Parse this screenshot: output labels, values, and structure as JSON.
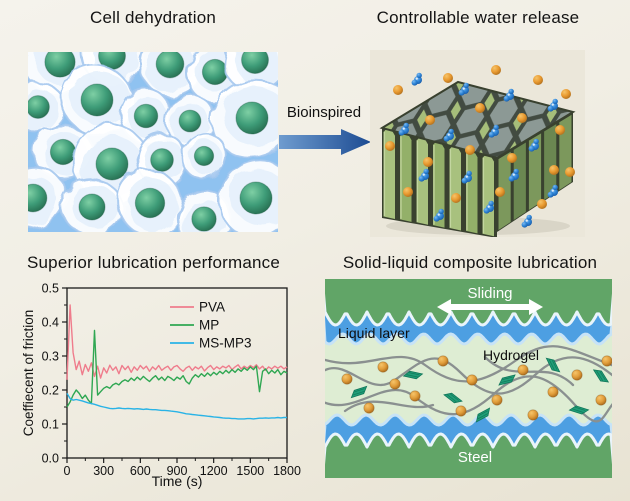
{
  "panels": {
    "cell_dehydration": {
      "title": "Cell dehydration"
    },
    "water_release": {
      "title": "Controllable water release"
    },
    "lubrication_performance": {
      "title": "Superior lubrication performance"
    },
    "composite_lubrication": {
      "title": "Solid-liquid composite lubrication",
      "labels": {
        "sliding": "Sliding",
        "liquid_layer": "Liquid layer",
        "hydrogel": "Hydrogel",
        "steel": "Steel"
      }
    }
  },
  "arrow": {
    "label": "Bioinspired",
    "color_start": "#6f9ccf",
    "color_end": "#1c4b92"
  },
  "chart_data": {
    "type": "line",
    "title": "",
    "xlabel": "Time (s)",
    "ylabel": "Coeffiecent of friction",
    "xlim": [
      0,
      1800
    ],
    "ylim": [
      0.0,
      0.5
    ],
    "xticks": [
      0,
      300,
      600,
      900,
      1200,
      1500,
      1800
    ],
    "yticks": [
      0.0,
      0.1,
      0.2,
      0.3,
      0.4,
      0.5
    ],
    "grid": false,
    "legend_position": "top-right",
    "x_step": 25,
    "series": [
      {
        "name": "PVA",
        "color": "#ef7c8c",
        "values": [
          0.23,
          0.45,
          0.31,
          0.26,
          0.285,
          0.245,
          0.275,
          0.255,
          0.28,
          0.24,
          0.27,
          0.235,
          0.265,
          0.25,
          0.273,
          0.258,
          0.268,
          0.248,
          0.272,
          0.26,
          0.27,
          0.252,
          0.268,
          0.258,
          0.272,
          0.262,
          0.27,
          0.255,
          0.268,
          0.26,
          0.272,
          0.258,
          0.265,
          0.27,
          0.258,
          0.268,
          0.272,
          0.262,
          0.255,
          0.265,
          0.27,
          0.258,
          0.268,
          0.262,
          0.27,
          0.256,
          0.266,
          0.272,
          0.26,
          0.268,
          0.262,
          0.27,
          0.265,
          0.272,
          0.26,
          0.268,
          0.274,
          0.262,
          0.27,
          0.264,
          0.272,
          0.266,
          0.274,
          0.262,
          0.27,
          0.258,
          0.268,
          0.262,
          0.27,
          0.264,
          0.27,
          0.262,
          0.268
        ]
      },
      {
        "name": "MP",
        "color": "#2fa752",
        "values": [
          0.15,
          0.165,
          0.185,
          0.2,
          0.19,
          0.175,
          0.185,
          0.17,
          0.16,
          0.375,
          0.185,
          0.195,
          0.205,
          0.21,
          0.205,
          0.215,
          0.22,
          0.215,
          0.225,
          0.23,
          0.225,
          0.235,
          0.228,
          0.238,
          0.23,
          0.24,
          0.232,
          0.225,
          0.235,
          0.242,
          0.23,
          0.238,
          0.228,
          0.24,
          0.235,
          0.228,
          0.238,
          0.232,
          0.242,
          0.225,
          0.218,
          0.235,
          0.245,
          0.238,
          0.248,
          0.24,
          0.25,
          0.242,
          0.252,
          0.245,
          0.255,
          0.248,
          0.258,
          0.25,
          0.26,
          0.252,
          0.262,
          0.255,
          0.265,
          0.258,
          0.268,
          0.26,
          0.27,
          0.195,
          0.255,
          0.262,
          0.248,
          0.258,
          0.25,
          0.26,
          0.245,
          0.255,
          0.25
        ]
      },
      {
        "name": "MS-MP3",
        "color": "#29b3e6",
        "values": [
          0.19,
          0.175,
          0.17,
          0.172,
          0.17,
          0.168,
          0.165,
          0.162,
          0.16,
          0.158,
          0.155,
          0.152,
          0.15,
          0.148,
          0.146,
          0.145,
          0.146,
          0.147,
          0.146,
          0.145,
          0.146,
          0.145,
          0.144,
          0.145,
          0.144,
          0.143,
          0.144,
          0.143,
          0.142,
          0.142,
          0.141,
          0.14,
          0.14,
          0.139,
          0.138,
          0.137,
          0.136,
          0.134,
          0.132,
          0.13,
          0.129,
          0.128,
          0.127,
          0.126,
          0.125,
          0.124,
          0.123,
          0.122,
          0.121,
          0.12,
          0.119,
          0.118,
          0.117,
          0.117,
          0.116,
          0.116,
          0.115,
          0.115,
          0.115,
          0.116,
          0.116,
          0.115,
          0.116,
          0.117,
          0.117,
          0.118,
          0.117,
          0.118,
          0.118,
          0.119,
          0.118,
          0.119,
          0.119
        ]
      }
    ]
  },
  "illustrations": {
    "cells": {
      "bg": "#8fc2f0",
      "membrane_color": "#ffffff",
      "nucleus_color": "#3e9c78",
      "items": [
        [
          32,
          10,
          36
        ],
        [
          84,
          4,
          32
        ],
        [
          142,
          12,
          33
        ],
        [
          187,
          20,
          30
        ],
        [
          227,
          8,
          32
        ],
        [
          10,
          55,
          27
        ],
        [
          69,
          48,
          38
        ],
        [
          118,
          64,
          28
        ],
        [
          162,
          69,
          26
        ],
        [
          224,
          66,
          42
        ],
        [
          35,
          100,
          30
        ],
        [
          84,
          112,
          42
        ],
        [
          134,
          108,
          27
        ],
        [
          176,
          104,
          23
        ],
        [
          5,
          146,
          33
        ],
        [
          64,
          155,
          31
        ],
        [
          122,
          151,
          35
        ],
        [
          176,
          167,
          29
        ],
        [
          228,
          146,
          39
        ]
      ]
    },
    "honeycomb": {
      "bg": "#ebe7da",
      "wall_green": "#a8c17e",
      "frame_dark": "#424b41",
      "cell_gray": "#8c9995",
      "sphere_color": "#e8992f",
      "cluster_color": "#2e86d8",
      "spheres": [
        [
          28,
          40
        ],
        [
          78,
          28
        ],
        [
          126,
          20
        ],
        [
          168,
          30
        ],
        [
          196,
          44
        ],
        [
          60,
          70
        ],
        [
          110,
          58
        ],
        [
          152,
          68
        ],
        [
          190,
          80
        ],
        [
          20,
          96
        ],
        [
          58,
          112
        ],
        [
          100,
          100
        ],
        [
          142,
          108
        ],
        [
          184,
          120
        ],
        [
          38,
          142
        ],
        [
          86,
          148
        ],
        [
          130,
          142
        ],
        [
          172,
          154
        ],
        [
          200,
          122
        ]
      ],
      "clusters": [
        [
          48,
          30
        ],
        [
          95,
          40
        ],
        [
          140,
          46
        ],
        [
          184,
          56
        ],
        [
          35,
          80
        ],
        [
          80,
          86
        ],
        [
          125,
          82
        ],
        [
          165,
          96
        ],
        [
          55,
          126
        ],
        [
          98,
          128
        ],
        [
          145,
          126
        ],
        [
          184,
          142
        ],
        [
          70,
          166
        ],
        [
          120,
          158
        ],
        [
          158,
          172
        ]
      ]
    },
    "hydrogel": {
      "band_green": "#61a567",
      "liquid_blue": "#4d9fe2",
      "gel_bg": "#deedd3",
      "chain_gray": "#8a9090",
      "bead_orange": "#e19d3a",
      "sheet_teal": "#1f9e77",
      "beads": [
        [
          22,
          100
        ],
        [
          58,
          88
        ],
        [
          90,
          117
        ],
        [
          118,
          82
        ],
        [
          147,
          101
        ],
        [
          172,
          121
        ],
        [
          198,
          91
        ],
        [
          228,
          113
        ],
        [
          252,
          96
        ],
        [
          276,
          121
        ],
        [
          44,
          129
        ],
        [
          136,
          132
        ],
        [
          208,
          136
        ],
        [
          282,
          82
        ],
        [
          70,
          105
        ]
      ],
      "sheets": [
        [
          34,
          113,
          -18
        ],
        [
          88,
          96,
          12
        ],
        [
          128,
          119,
          38
        ],
        [
          182,
          101,
          -14
        ],
        [
          228,
          86,
          64
        ],
        [
          254,
          131,
          18
        ],
        [
          158,
          136,
          -28
        ],
        [
          276,
          97,
          58
        ]
      ]
    }
  }
}
